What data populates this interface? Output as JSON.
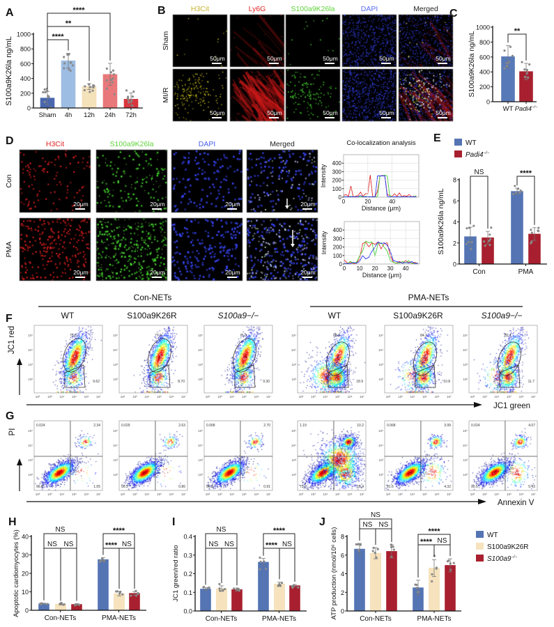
{
  "panel_labels": [
    "A",
    "B",
    "C",
    "D",
    "E",
    "F",
    "G",
    "H",
    "I",
    "J"
  ],
  "panelB": {
    "columns": [
      {
        "label": "H3Cit",
        "color": "#c9b52c"
      },
      {
        "label": "Ly6G",
        "color": "#e02424"
      },
      {
        "label": "S100a9K26la",
        "color": "#5fd33a"
      },
      {
        "label": "DAPI",
        "color": "#5a6cf0"
      },
      {
        "label": "Merged",
        "color": "#222222"
      }
    ],
    "rows": [
      "Sham",
      "MI/R"
    ],
    "scale_bar": "50μm"
  },
  "panelD": {
    "columns": [
      {
        "label": "H3Cit",
        "color": "#e02424"
      },
      {
        "label": "S100a9K26la",
        "color": "#5fd33a"
      },
      {
        "label": "DAPI",
        "color": "#4a5ef0"
      },
      {
        "label": "Merged",
        "color": "#222222"
      }
    ],
    "rows": [
      "Con",
      "PMA"
    ],
    "scale_bar": "20μm",
    "colocalization_title": "Co-localization analysis"
  },
  "legendE": [
    {
      "text": "WT",
      "color": "#5474b4"
    },
    {
      "text": "Padi4",
      "sup": "−/−",
      "italic": true,
      "color": "#a8202f"
    }
  ],
  "legendJ": [
    {
      "text": "WT",
      "color": "#5474b4"
    },
    {
      "text": "S100a9K26R",
      "color": "#f6e3bd"
    },
    {
      "text": "S100a9",
      "sup": "−/−",
      "italic": true,
      "color": "#a8202f"
    }
  ],
  "flow": {
    "group_titles": [
      "Con-NETs",
      "PMA-NETs"
    ],
    "genotypes": [
      {
        "text": "WT"
      },
      {
        "text": "S100a9K26R"
      },
      {
        "text": "S100a9",
        "sup": "−/−",
        "italic": true
      }
    ],
    "ticks_x": [
      "10²",
      "10³",
      "10⁴",
      "10⁵",
      "10⁶",
      "10⁷"
    ],
    "ticks_y": [
      "10⁵",
      "10⁴",
      "10³",
      "10²"
    ]
  },
  "chart_data": [
    {
      "panel": "A",
      "type": "bar",
      "ylabel": "S100a9K26la ng/mL",
      "ylim": [
        0,
        1000
      ],
      "yticks": [
        "0",
        "200",
        "400",
        "600",
        "800",
        "1000"
      ],
      "categories": [
        "Sham",
        "4h",
        "12h",
        "24h",
        "72h"
      ],
      "values": [
        135,
        640,
        290,
        455,
        120
      ],
      "errors": [
        90,
        100,
        40,
        150,
        85
      ],
      "colors": [
        "#4a67ad",
        "#9dbde3",
        "#f4e2bb",
        "#e8787a",
        "#d9363e"
      ],
      "comparisons": [
        {
          "between": [
            0,
            1
          ],
          "label": "****"
        },
        {
          "between": [
            0,
            2
          ],
          "label": "**"
        },
        {
          "between": [
            0,
            3
          ],
          "label": "****"
        }
      ]
    },
    {
      "panel": "C",
      "type": "bar",
      "ylabel": "S100a9K26la ng/mL",
      "ylim": [
        0,
        1000
      ],
      "yticks": [
        "0",
        "200",
        "400",
        "600",
        "800",
        "1000"
      ],
      "categories": [
        {
          "text": "WT"
        },
        {
          "text": "Padi4",
          "sup": "−/−",
          "italic": true
        }
      ],
      "values": [
        605,
        405
      ],
      "errors": [
        150,
        110
      ],
      "colors": [
        "#5879b8",
        "#a8202f"
      ],
      "comparisons": [
        {
          "between": [
            0,
            1
          ],
          "label": "**"
        }
      ]
    },
    {
      "panel": "D-Con",
      "type": "line",
      "xlabel": "Distance (μm)",
      "ylabel": "Intensity",
      "xlim": [
        0,
        62
      ],
      "ylim": [
        0,
        500
      ],
      "xticks": [
        "0",
        "20",
        "40"
      ],
      "yticks": [
        "0",
        "100",
        "200",
        "300",
        "400"
      ],
      "x_step": 2,
      "series": [
        {
          "color": "#e02020",
          "values": [
            20,
            30,
            10,
            130,
            5,
            10,
            20,
            60,
            10,
            40,
            40,
            260,
            5,
            10,
            70,
            250,
            255,
            250,
            30,
            20,
            10,
            40,
            10,
            50,
            5,
            20,
            10,
            30,
            5,
            10,
            5
          ]
        },
        {
          "color": "#40d030",
          "values": [
            5,
            5,
            5,
            10,
            5,
            5,
            5,
            5,
            5,
            10,
            5,
            5,
            5,
            5,
            10,
            250,
            250,
            260,
            250,
            20,
            5,
            5,
            5,
            5,
            5,
            5,
            5,
            5,
            5,
            5,
            20
          ]
        },
        {
          "color": "#2030f0",
          "values": [
            5,
            5,
            5,
            5,
            5,
            5,
            5,
            20,
            5,
            5,
            5,
            5,
            5,
            5,
            250,
            250,
            250,
            250,
            10,
            5,
            5,
            5,
            5,
            5,
            5,
            5,
            5,
            5,
            5,
            5,
            5
          ]
        }
      ]
    },
    {
      "panel": "D-PMA",
      "type": "line",
      "xlabel": "Distance (μm)",
      "ylabel": "Intensity",
      "xlim": [
        0,
        49
      ],
      "ylim": [
        0,
        500
      ],
      "xticks": [
        "0",
        "10",
        "20",
        "30",
        "40"
      ],
      "yticks": [
        "0",
        "100",
        "200",
        "300",
        "400"
      ],
      "x_step": 2,
      "series": [
        {
          "color": "#e02020",
          "values": [
            50,
            10,
            20,
            5,
            10,
            60,
            240,
            260,
            200,
            250,
            230,
            260,
            180,
            240,
            250,
            100,
            20,
            10,
            30,
            10,
            40,
            20,
            10,
            20,
            5
          ]
        },
        {
          "color": "#40d030",
          "values": [
            10,
            5,
            30,
            10,
            20,
            100,
            150,
            270,
            250,
            260,
            90,
            240,
            250,
            200,
            150,
            40,
            20,
            10,
            10,
            30,
            10,
            40,
            5,
            10,
            10
          ]
        },
        {
          "color": "#2030f0",
          "values": [
            10,
            5,
            5,
            20,
            10,
            30,
            100,
            60,
            80,
            150,
            200,
            260,
            240,
            250,
            220,
            150,
            40,
            30,
            20,
            10,
            20,
            10,
            30,
            5,
            10
          ]
        }
      ]
    },
    {
      "panel": "E",
      "type": "bar",
      "ylabel": "S100a9K26la ng/mL",
      "ylim": [
        0,
        8
      ],
      "yticks": [
        "0",
        "2",
        "4",
        "6",
        "8"
      ],
      "categories": [
        "Con",
        "PMA"
      ],
      "series": [
        {
          "name": "WT",
          "color": "#5474b4",
          "values": [
            2.6,
            6.9
          ],
          "errors": [
            0.9,
            0.3
          ]
        },
        {
          "name": "Padi4−/−",
          "color": "#a8202f",
          "values": [
            2.5,
            2.85
          ],
          "errors": [
            0.6,
            0.6
          ]
        }
      ],
      "legend": "top-left",
      "comparisons": [
        {
          "between": [
            0,
            1
          ],
          "label": "NS"
        },
        {
          "between": [
            2,
            3
          ],
          "label": "****"
        }
      ]
    },
    {
      "panel": "F",
      "type": "scatter",
      "xlabel": "JC1 green",
      "ylabel": "JC1 red",
      "plots": [
        {
          "group": "Con-NETs",
          "genotype": "WT",
          "upper_gate": "75.0",
          "lower_gate": "9.62"
        },
        {
          "group": "Con-NETs",
          "genotype": "S100a9K26R",
          "upper_gate": "77.9",
          "lower_gate": "8.70"
        },
        {
          "group": "Con-NETs",
          "genotype": "S100a9−/−",
          "upper_gate": "75.3",
          "lower_gate": "9.30"
        },
        {
          "group": "PMA-NETs",
          "genotype": "WT",
          "upper_gate": "68.8",
          "lower_gate": "18.9"
        },
        {
          "group": "PMA-NETs",
          "genotype": "S100a9K26R",
          "upper_gate": "84.2",
          "lower_gate": "10.8"
        },
        {
          "group": "PMA-NETs",
          "genotype": "S100a9−/−",
          "upper_gate": "82.1",
          "lower_gate": "11.7"
        }
      ]
    },
    {
      "panel": "G",
      "type": "scatter",
      "xlabel": "Annexin V",
      "ylabel": "PI",
      "plots": [
        {
          "group": "Con-NETs",
          "genotype": "WT",
          "UL": "0.024",
          "UR": "2.34",
          "LL": "96.6",
          "LR": "1.05"
        },
        {
          "group": "Con-NETs",
          "genotype": "S100a9K26R",
          "UL": "0.029",
          "UR": "2.63",
          "LL": "96.5",
          "LR": "0.86"
        },
        {
          "group": "Con-NETs",
          "genotype": "S100a9−/−",
          "UL": "0.068",
          "UR": "2.70",
          "LL": "96.3",
          "LR": "0.91"
        },
        {
          "group": "PMA-NETs",
          "genotype": "WT",
          "UL": "1.19",
          "UR": "10.2",
          "LL": "73.2",
          "LR": "15.4"
        },
        {
          "group": "PMA-NETs",
          "genotype": "S100a9K26R",
          "UL": "0.068",
          "UR": "3.99",
          "LL": "91.6",
          "LR": "4.32"
        },
        {
          "group": "PMA-NETs",
          "genotype": "S100a9−/−",
          "UL": "0.024",
          "UR": "4.07",
          "LL": "90.5",
          "LR": "5.43"
        }
      ]
    },
    {
      "panel": "H",
      "type": "bar",
      "ylabel": "Apoptotic cardiomyocytes (%)",
      "ylim": [
        0,
        40
      ],
      "yticks": [
        "0",
        "10",
        "20",
        "30",
        "40"
      ],
      "categories": [
        "Con-NETs",
        "PMA-NETs"
      ],
      "series": [
        {
          "name": "WT",
          "color": "#5474b4",
          "values": [
            3.5,
            27.5
          ],
          "errors": [
            0.4,
            1.0
          ]
        },
        {
          "name": "S100a9K26R",
          "color": "#f6e3bd",
          "values": [
            3.3,
            9.0
          ],
          "errors": [
            0.4,
            1.2
          ]
        },
        {
          "name": "S100a9−/−",
          "color": "#a8202f",
          "values": [
            3.2,
            9.2
          ],
          "errors": [
            0.4,
            1.0
          ]
        }
      ],
      "comparisons": [
        {
          "between": [
            0,
            2
          ],
          "label": "NS"
        },
        {
          "between": [
            0,
            1
          ],
          "label": "NS"
        },
        {
          "between": [
            1,
            2
          ],
          "label": "NS"
        },
        {
          "between": [
            3,
            5
          ],
          "label": "****"
        },
        {
          "between": [
            3,
            4
          ],
          "label": "****"
        },
        {
          "between": [
            4,
            5
          ],
          "label": "NS"
        }
      ]
    },
    {
      "panel": "I",
      "type": "bar",
      "ylabel": "JC1 green/red ratio",
      "ylim": [
        0,
        0.4
      ],
      "yticks": [
        "0.0",
        "0.1",
        "0.2",
        "0.3",
        "0.4"
      ],
      "categories": [
        "Con-NETs",
        "PMA-NETs"
      ],
      "series": [
        {
          "name": "WT",
          "color": "#5474b4",
          "values": [
            0.118,
            0.262
          ],
          "errors": [
            0.008,
            0.02
          ]
        },
        {
          "name": "S100a9K26R",
          "color": "#f6e3bd",
          "values": [
            0.12,
            0.145
          ],
          "errors": [
            0.015,
            0.01
          ]
        },
        {
          "name": "S100a9−/−",
          "color": "#a8202f",
          "values": [
            0.115,
            0.136
          ],
          "errors": [
            0.008,
            0.006
          ]
        }
      ],
      "comparisons": [
        {
          "between": [
            0,
            2
          ],
          "label": "NS"
        },
        {
          "between": [
            0,
            1
          ],
          "label": "NS"
        },
        {
          "between": [
            1,
            2
          ],
          "label": "NS"
        },
        {
          "between": [
            3,
            5
          ],
          "label": "****"
        },
        {
          "between": [
            3,
            4
          ],
          "label": "****"
        },
        {
          "between": [
            4,
            5
          ],
          "label": "NS"
        }
      ]
    },
    {
      "panel": "J",
      "type": "bar",
      "ylabel": "ATP production (nmol/10⁶ cells)",
      "ylim": [
        0,
        8
      ],
      "yticks": [
        "0",
        "2",
        "4",
        "6",
        "8"
      ],
      "categories": [
        "Con-NETs",
        "PMA-NETs"
      ],
      "series": [
        {
          "name": "WT",
          "color": "#5474b4",
          "values": [
            6.65,
            2.5
          ],
          "errors": [
            0.6,
            0.8
          ]
        },
        {
          "name": "S100a9K26R",
          "color": "#f6e3bd",
          "values": [
            6.2,
            4.6
          ],
          "errors": [
            0.6,
            0.9
          ]
        },
        {
          "name": "S100a9−/−",
          "color": "#a8202f",
          "values": [
            6.4,
            4.9
          ],
          "errors": [
            0.7,
            0.7
          ]
        }
      ],
      "legend": "right",
      "comparisons": [
        {
          "between": [
            0,
            2
          ],
          "label": "NS"
        },
        {
          "between": [
            0,
            1
          ],
          "label": "NS"
        },
        {
          "between": [
            1,
            2
          ],
          "label": "NS"
        },
        {
          "between": [
            3,
            5
          ],
          "label": "****"
        },
        {
          "between": [
            3,
            4
          ],
          "label": "****"
        },
        {
          "between": [
            4,
            5
          ],
          "label": "NS"
        }
      ]
    }
  ]
}
